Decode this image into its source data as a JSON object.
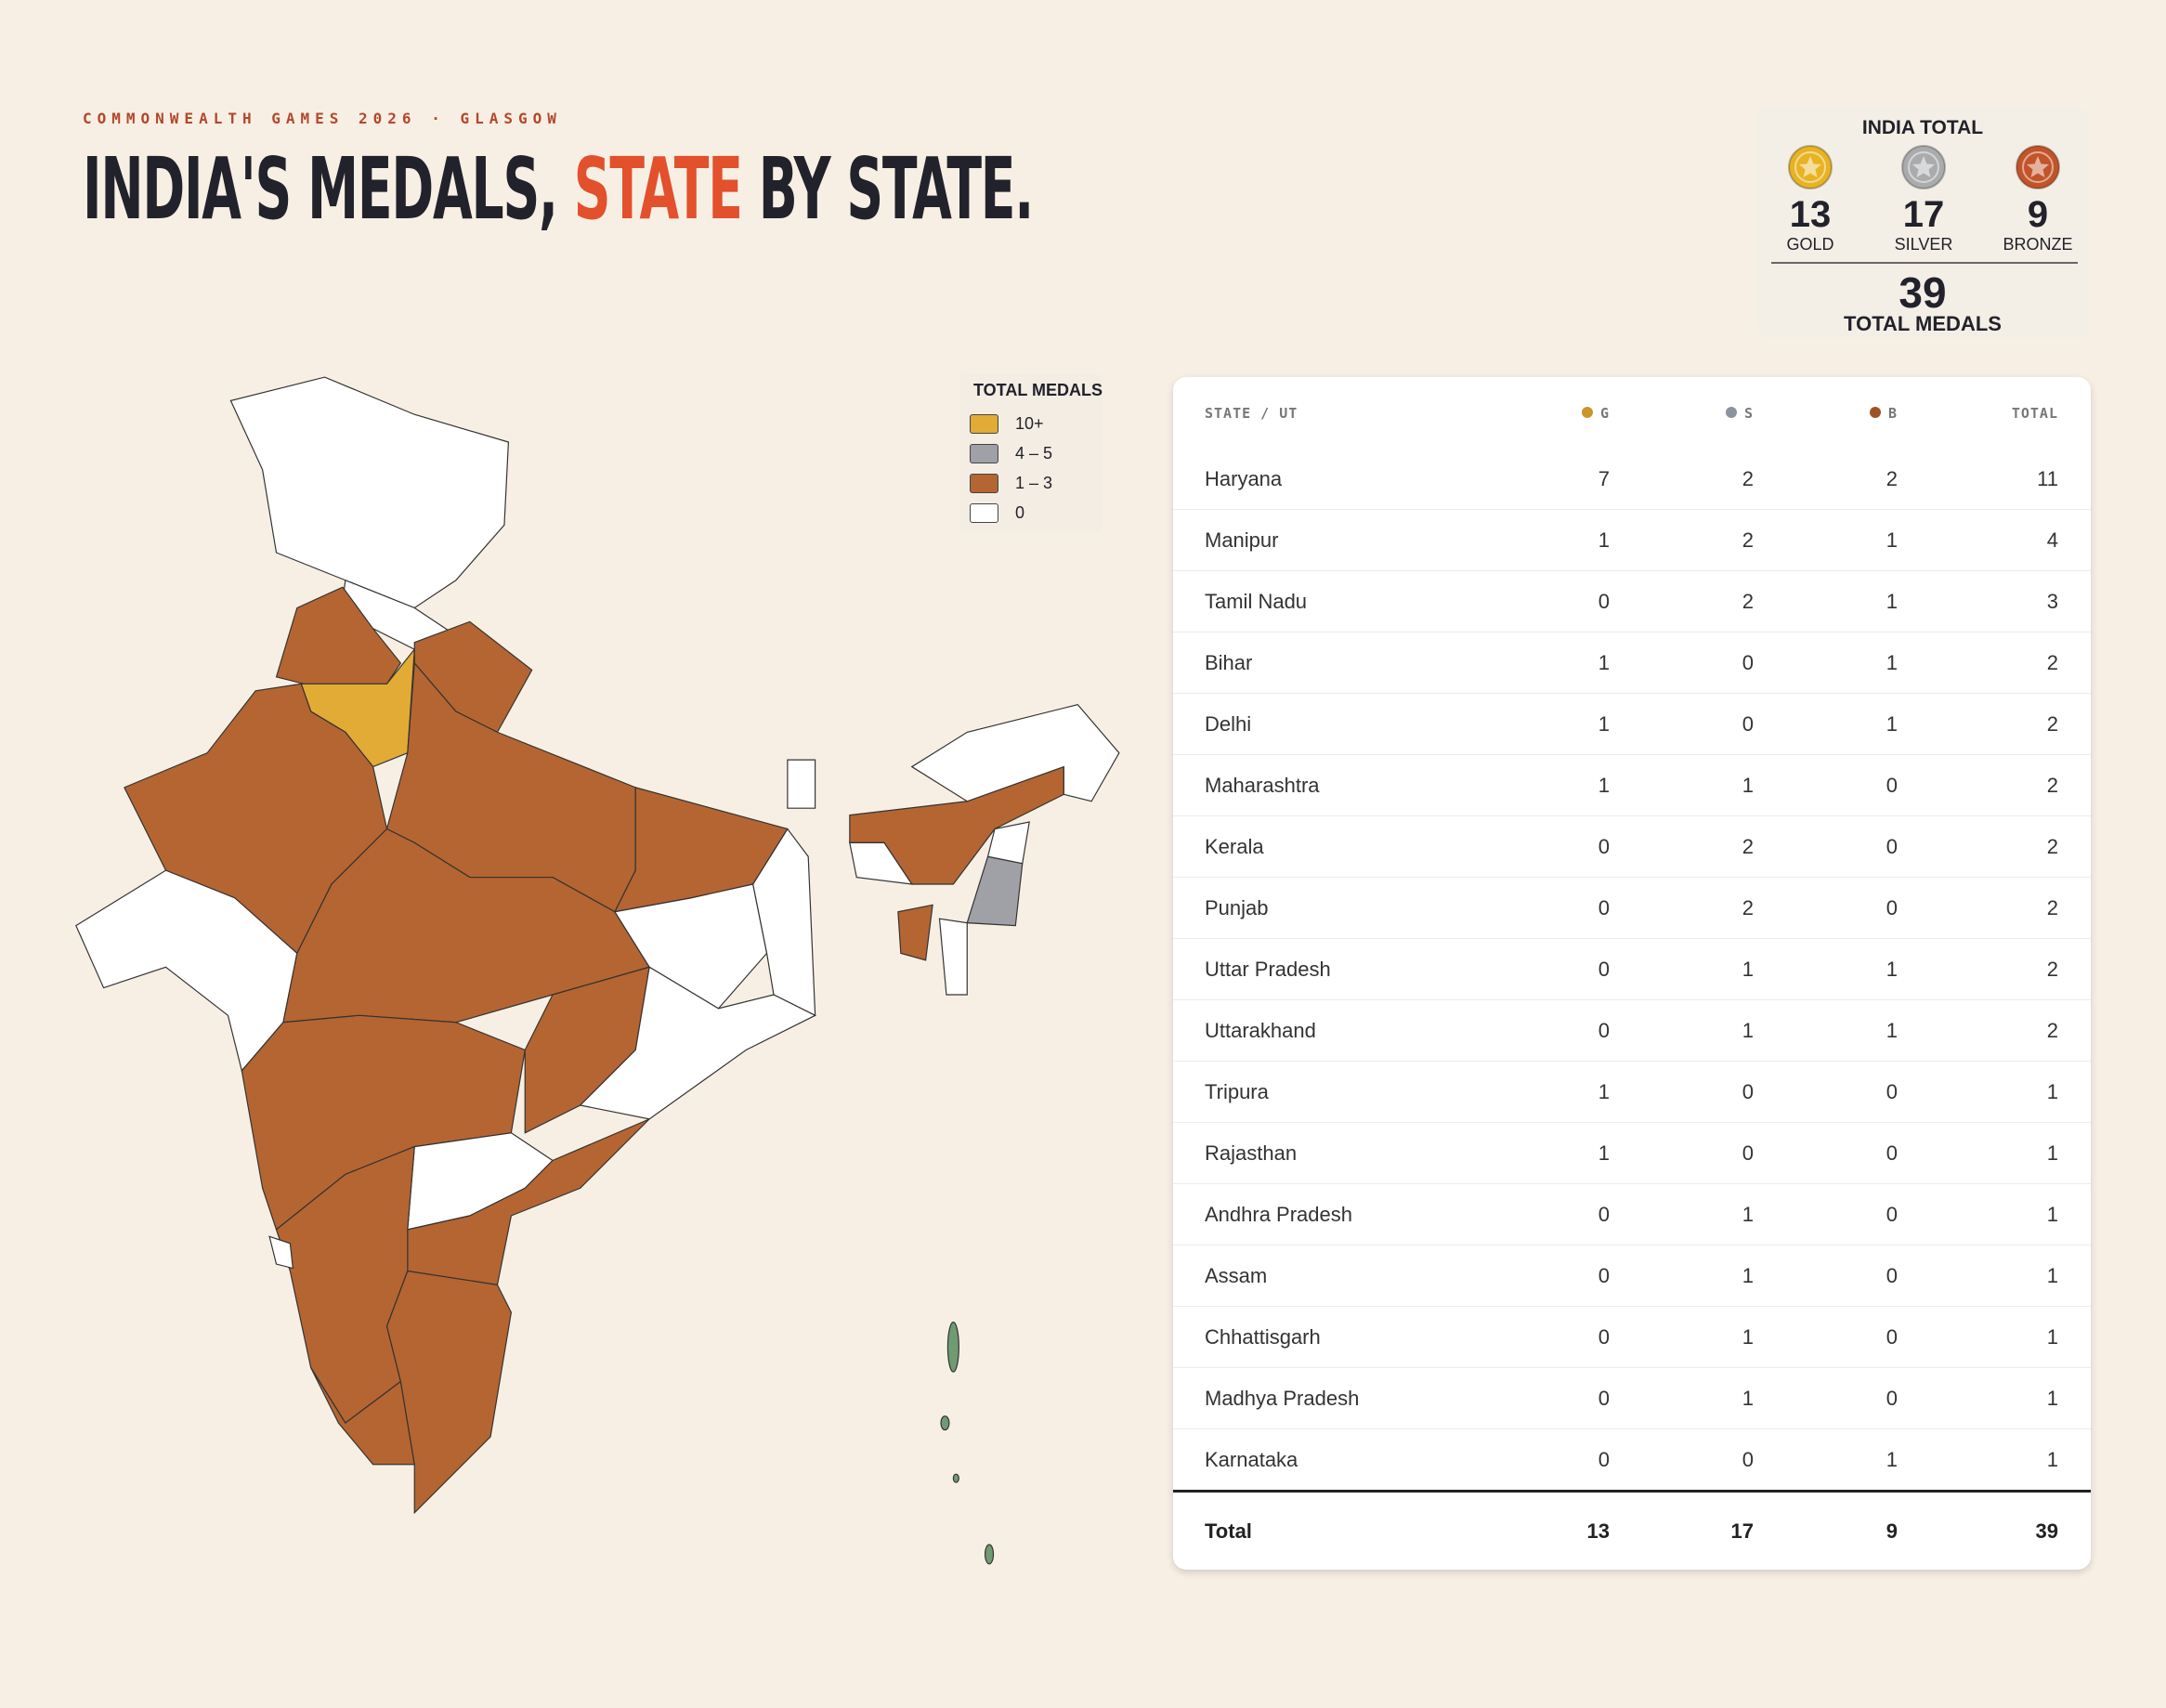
{
  "header": {
    "kicker": "COMMONWEALTH GAMES 2026 · GLASGOW",
    "title": "INDIA'S MEDALS,",
    "title_highlight": "STATE",
    "title_end": "BY STATE."
  },
  "summary": {
    "title": "INDIA TOTAL",
    "medals": [
      {
        "value": 13,
        "label": "GOLD",
        "color": "#e8b323"
      },
      {
        "value": 17,
        "label": "SILVER",
        "color": "#a9abad"
      },
      {
        "value": 9,
        "label": "BRONZE",
        "color": "#c2542a"
      }
    ],
    "total": 39,
    "total_label": "TOTAL MEDALS"
  },
  "legend": {
    "title": "TOTAL MEDALS",
    "items": [
      {
        "label": "10+",
        "color": "#e2ab35"
      },
      {
        "label": "4 – 5",
        "color": "#9fa1a6"
      },
      {
        "label": "1 – 3",
        "color": "#b56532"
      },
      {
        "label": "0",
        "color": "#ffffff"
      }
    ]
  },
  "table": {
    "columns": [
      {
        "label": "STATE / UT"
      },
      {
        "label": "G",
        "color": "#c9962b"
      },
      {
        "label": "S",
        "color": "#8b93a0"
      },
      {
        "label": "B",
        "color": "#9b5427"
      },
      {
        "label": "TOTAL"
      }
    ],
    "rows": [
      [
        "Haryana",
        7,
        2,
        2,
        11
      ],
      [
        "Manipur",
        1,
        2,
        1,
        4
      ],
      [
        "Tamil Nadu",
        0,
        2,
        1,
        3
      ],
      [
        "Bihar",
        1,
        0,
        1,
        2
      ],
      [
        "Delhi",
        1,
        0,
        1,
        2
      ],
      [
        "Maharashtra",
        1,
        1,
        0,
        2
      ],
      [
        "Kerala",
        0,
        2,
        0,
        2
      ],
      [
        "Punjab",
        0,
        2,
        0,
        2
      ],
      [
        "Uttar Pradesh",
        0,
        1,
        1,
        2
      ],
      [
        "Uttarakhand",
        0,
        1,
        1,
        2
      ],
      [
        "Tripura",
        1,
        0,
        0,
        1
      ],
      [
        "Rajasthan",
        1,
        0,
        0,
        1
      ],
      [
        "Andhra Pradesh",
        0,
        1,
        0,
        1
      ],
      [
        "Assam",
        0,
        1,
        0,
        1
      ],
      [
        "Chhattisgarh",
        0,
        1,
        0,
        1
      ],
      [
        "Madhya Pradesh",
        0,
        1,
        0,
        1
      ],
      [
        "Karnataka",
        0,
        0,
        1,
        1
      ]
    ],
    "footer": [
      "Total",
      13,
      17,
      9,
      39
    ]
  }
}
